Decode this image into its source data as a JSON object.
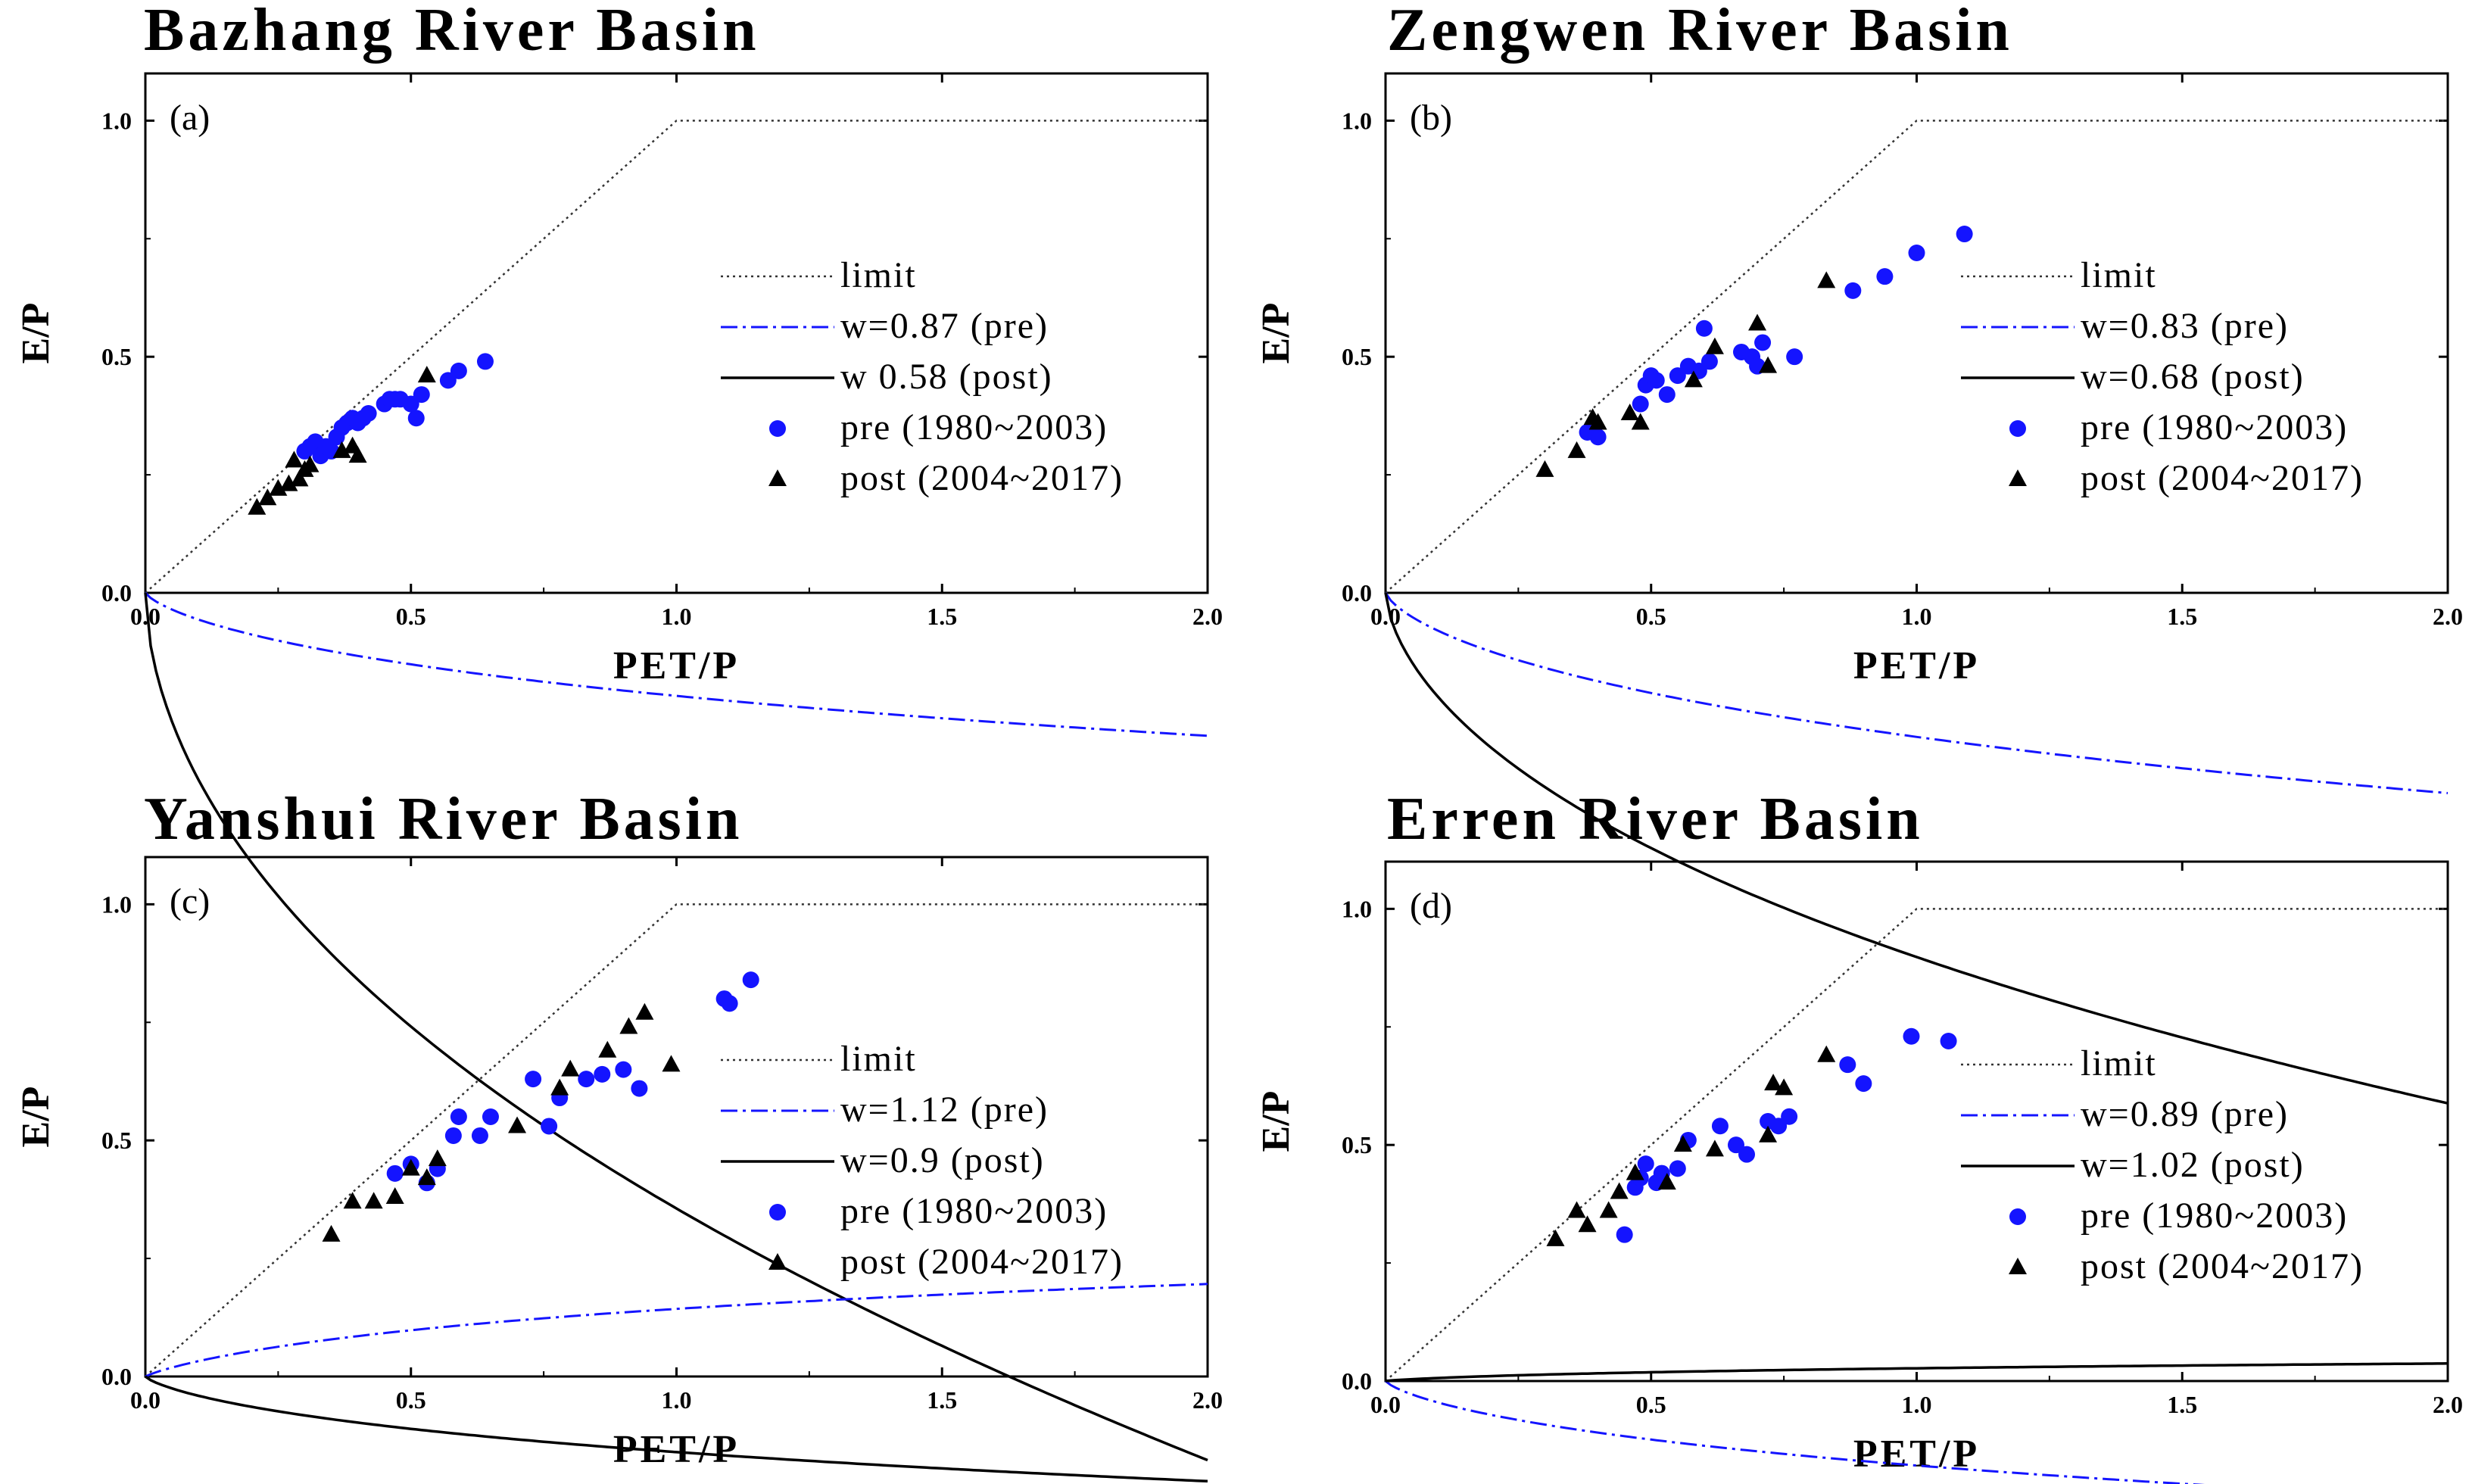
{
  "figure": {
    "colors": {
      "pre": "#1414ff",
      "post": "#000000",
      "limit": "#333333",
      "axis": "#000000"
    },
    "curve_x_max": 2.0
  },
  "chart_data": [
    {
      "type": "scatter",
      "panel": "a",
      "panel_label": "(a)",
      "title": "Bazhang River Basin",
      "xlabel": "PET/P",
      "ylabel": "E/P",
      "xlim": [
        0,
        2
      ],
      "ylim": [
        0,
        1.1
      ],
      "xticks": [
        0,
        0.5,
        1,
        1.5,
        2
      ],
      "xtick_labels": [
        "0.0",
        "0.5",
        "1.0",
        "1.5",
        "2.0"
      ],
      "yticks": [
        0,
        0.5,
        1
      ],
      "ytick_labels": [
        "0.0",
        "0.5",
        "1.0"
      ],
      "curves": [
        {
          "kind": "limit",
          "label": "limit"
        },
        {
          "kind": "fu",
          "w": 0.87,
          "label": "w=0.87 (pre)"
        },
        {
          "kind": "fu",
          "w": 0.58,
          "label": "w   0.58 (post)"
        }
      ],
      "series": [
        {
          "name": "pre (1980~2003)",
          "marker": "circle",
          "x": [
            0.3,
            0.31,
            0.32,
            0.33,
            0.34,
            0.35,
            0.36,
            0.37,
            0.38,
            0.39,
            0.4,
            0.41,
            0.42,
            0.45,
            0.46,
            0.47,
            0.48,
            0.5,
            0.51,
            0.52,
            0.57,
            0.59,
            0.64
          ],
          "y": [
            0.3,
            0.31,
            0.32,
            0.29,
            0.31,
            0.3,
            0.33,
            0.35,
            0.36,
            0.37,
            0.36,
            0.37,
            0.38,
            0.4,
            0.41,
            0.41,
            0.41,
            0.4,
            0.37,
            0.42,
            0.45,
            0.47,
            0.49
          ]
        },
        {
          "name": "post (2004~2017)",
          "marker": "triangle",
          "x": [
            0.21,
            0.23,
            0.25,
            0.27,
            0.28,
            0.29,
            0.3,
            0.31,
            0.37,
            0.39,
            0.4,
            0.53
          ],
          "y": [
            0.18,
            0.2,
            0.22,
            0.23,
            0.28,
            0.24,
            0.26,
            0.27,
            0.3,
            0.31,
            0.29,
            0.46
          ]
        }
      ]
    },
    {
      "type": "scatter",
      "panel": "b",
      "panel_label": "(b)",
      "title": "Zengwen River Basin",
      "xlabel": "PET/P",
      "ylabel": "E/P",
      "xlim": [
        0,
        2
      ],
      "ylim": [
        0,
        1.1
      ],
      "xticks": [
        0,
        0.5,
        1,
        1.5,
        2
      ],
      "xtick_labels": [
        "0.0",
        "0.5",
        "1.0",
        "1.5",
        "2.0"
      ],
      "yticks": [
        0,
        0.5,
        1
      ],
      "ytick_labels": [
        "0.0",
        "0.5",
        "1.0"
      ],
      "curves": [
        {
          "kind": "limit",
          "label": "limit"
        },
        {
          "kind": "fu",
          "w": 0.83,
          "label": "w=0.83 (pre)"
        },
        {
          "kind": "fu",
          "w": 0.68,
          "label": "w=0.68 (post)"
        }
      ],
      "series": [
        {
          "name": "pre (1980~2003)",
          "marker": "circle",
          "x": [
            0.38,
            0.4,
            0.48,
            0.49,
            0.5,
            0.51,
            0.53,
            0.55,
            0.57,
            0.59,
            0.6,
            0.61,
            0.67,
            0.69,
            0.7,
            0.71,
            0.77,
            0.88,
            0.94,
            1.0,
            1.09
          ],
          "y": [
            0.34,
            0.33,
            0.4,
            0.44,
            0.46,
            0.45,
            0.42,
            0.46,
            0.48,
            0.47,
            0.56,
            0.49,
            0.51,
            0.5,
            0.48,
            0.53,
            0.5,
            0.64,
            0.67,
            0.72,
            0.76
          ]
        },
        {
          "name": "post (2004~2017)",
          "marker": "triangle",
          "x": [
            0.3,
            0.36,
            0.39,
            0.4,
            0.46,
            0.48,
            0.58,
            0.62,
            0.7,
            0.72,
            0.83
          ],
          "y": [
            0.26,
            0.3,
            0.37,
            0.36,
            0.38,
            0.36,
            0.45,
            0.52,
            0.57,
            0.48,
            0.66
          ]
        }
      ]
    },
    {
      "type": "scatter",
      "panel": "c",
      "panel_label": "(c)",
      "title": "Yanshui River Basin",
      "xlabel": "PET/P",
      "ylabel": "E/P",
      "xlim": [
        0,
        2
      ],
      "ylim": [
        0,
        1.1
      ],
      "xticks": [
        0,
        0.5,
        1,
        1.5,
        2
      ],
      "xtick_labels": [
        "0.0",
        "0.5",
        "1.0",
        "1.5",
        "2.0"
      ],
      "yticks": [
        0,
        0.5,
        1
      ],
      "ytick_labels": [
        "0.0",
        "0.5",
        "1.0"
      ],
      "curves": [
        {
          "kind": "limit",
          "label": "limit"
        },
        {
          "kind": "fu",
          "w": 1.12,
          "label": "w=1.12 (pre)"
        },
        {
          "kind": "fu",
          "w": 0.9,
          "label": "w=0.9 (post)"
        }
      ],
      "series": [
        {
          "name": "pre (1980~2003)",
          "marker": "circle",
          "x": [
            0.47,
            0.5,
            0.53,
            0.55,
            0.58,
            0.59,
            0.63,
            0.65,
            0.73,
            0.76,
            0.78,
            0.83,
            0.86,
            0.9,
            0.93,
            1.09,
            1.1,
            1.14
          ],
          "y": [
            0.43,
            0.45,
            0.41,
            0.44,
            0.51,
            0.55,
            0.51,
            0.55,
            0.63,
            0.53,
            0.59,
            0.63,
            0.64,
            0.65,
            0.61,
            0.8,
            0.79,
            0.84
          ]
        },
        {
          "name": "post (2004~2017)",
          "marker": "triangle",
          "x": [
            0.35,
            0.39,
            0.43,
            0.47,
            0.5,
            0.53,
            0.55,
            0.7,
            0.78,
            0.8,
            0.87,
            0.91,
            0.94,
            0.99
          ],
          "y": [
            0.3,
            0.37,
            0.37,
            0.38,
            0.44,
            0.42,
            0.46,
            0.53,
            0.61,
            0.65,
            0.69,
            0.74,
            0.77,
            0.66
          ]
        }
      ]
    },
    {
      "type": "scatter",
      "panel": "d",
      "panel_label": "(d)",
      "title": "Erren River Basin",
      "xlabel": "PET/P",
      "ylabel": "E/P",
      "xlim": [
        0,
        2
      ],
      "ylim": [
        0,
        1.1
      ],
      "xticks": [
        0,
        0.5,
        1,
        1.5,
        2
      ],
      "xtick_labels": [
        "0.0",
        "0.5",
        "1.0",
        "1.5",
        "2.0"
      ],
      "yticks": [
        0,
        0.5,
        1
      ],
      "ytick_labels": [
        "0.0",
        "0.5",
        "1.0"
      ],
      "curves": [
        {
          "kind": "limit",
          "label": "limit"
        },
        {
          "kind": "fu",
          "w": 0.89,
          "label": "w=0.89 (pre)"
        },
        {
          "kind": "fu",
          "w": 1.02,
          "label": "w=1.02 (post)"
        }
      ],
      "series": [
        {
          "name": "pre (1980~2003)",
          "marker": "circle",
          "x": [
            0.45,
            0.47,
            0.48,
            0.49,
            0.51,
            0.52,
            0.55,
            0.57,
            0.63,
            0.66,
            0.68,
            0.72,
            0.74,
            0.76,
            0.87,
            0.9,
            0.99,
            1.06
          ],
          "y": [
            0.31,
            0.41,
            0.43,
            0.46,
            0.42,
            0.44,
            0.45,
            0.51,
            0.54,
            0.5,
            0.48,
            0.55,
            0.54,
            0.56,
            0.67,
            0.63,
            0.73,
            0.72
          ]
        },
        {
          "name": "post (2004~2017)",
          "marker": "triangle",
          "x": [
            0.32,
            0.36,
            0.38,
            0.42,
            0.44,
            0.47,
            0.53,
            0.56,
            0.62,
            0.72,
            0.73,
            0.75,
            0.83
          ],
          "y": [
            0.3,
            0.36,
            0.33,
            0.36,
            0.4,
            0.44,
            0.42,
            0.5,
            0.49,
            0.52,
            0.63,
            0.62,
            0.69
          ]
        }
      ]
    }
  ]
}
